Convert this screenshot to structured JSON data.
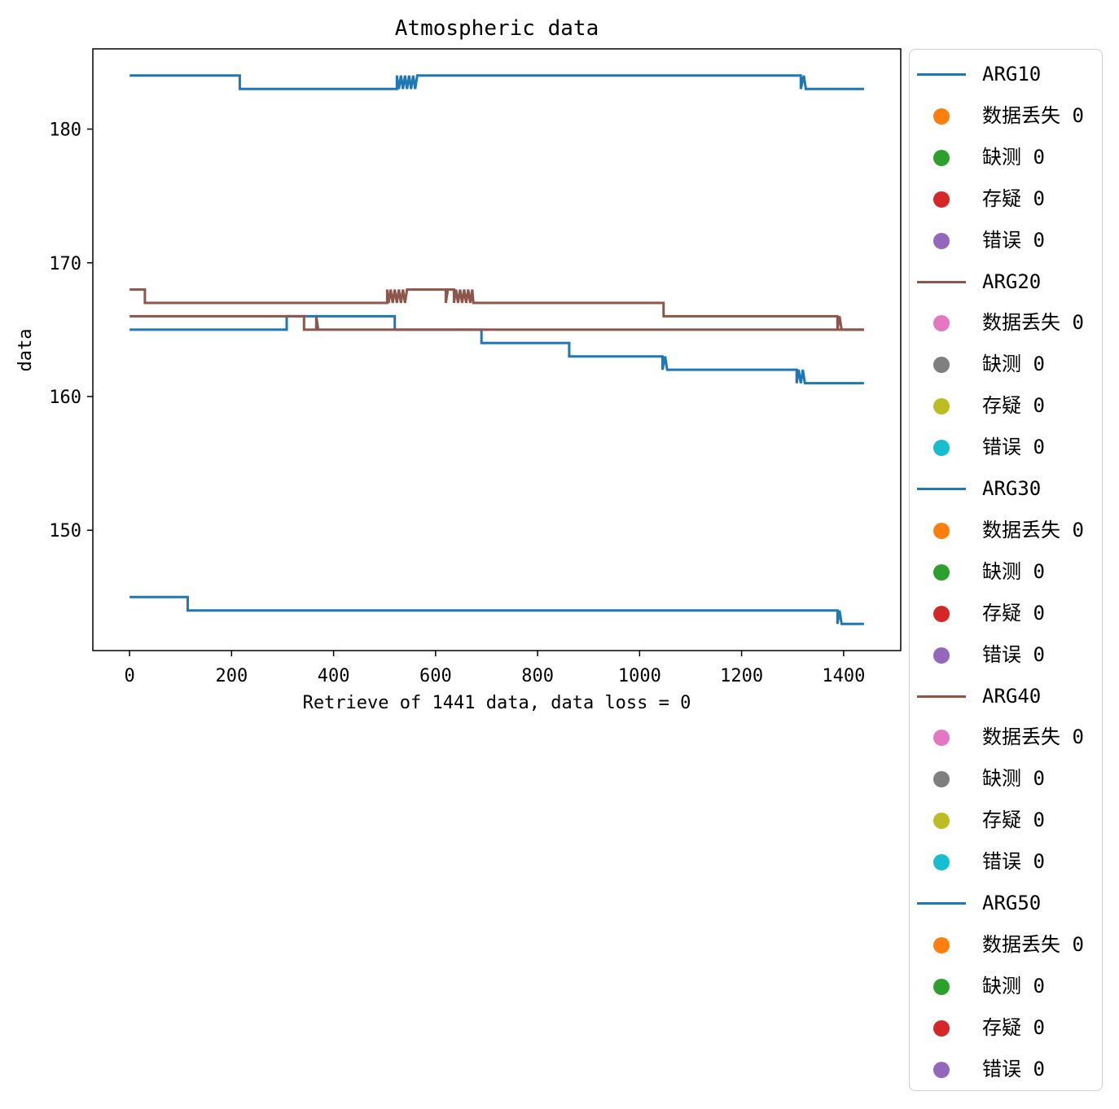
{
  "chart_data": {
    "type": "line",
    "title": "Atmospheric data",
    "xlabel": "Retrieve of 1441 data, data loss = 0",
    "ylabel": "data",
    "xlim": [
      -72,
      1512
    ],
    "ylim": [
      141,
      186
    ],
    "xticks": [
      0,
      200,
      400,
      600,
      800,
      1000,
      1200,
      1400
    ],
    "yticks": [
      150,
      160,
      170,
      180
    ],
    "grid": false,
    "legend_position": "outside-right",
    "series": [
      {
        "name": "ARG10",
        "color": "#1f77b4",
        "points": [
          [
            0,
            184
          ],
          [
            216,
            184
          ],
          [
            216,
            183
          ],
          [
            524,
            183
          ],
          [
            524,
            184
          ],
          [
            528,
            183
          ],
          [
            532,
            184
          ],
          [
            536,
            183
          ],
          [
            540,
            184
          ],
          [
            544,
            183
          ],
          [
            548,
            184
          ],
          [
            552,
            183
          ],
          [
            556,
            184
          ],
          [
            560,
            183
          ],
          [
            564,
            184
          ],
          [
            1316,
            184
          ],
          [
            1316,
            183
          ],
          [
            1322,
            184
          ],
          [
            1326,
            183
          ],
          [
            1440,
            183
          ]
        ]
      },
      {
        "name": "ARG20",
        "color": "#8c564b",
        "points": [
          [
            0,
            168
          ],
          [
            30,
            168
          ],
          [
            30,
            167
          ],
          [
            505,
            167
          ],
          [
            505,
            168
          ],
          [
            508,
            167
          ],
          [
            512,
            168
          ],
          [
            516,
            167
          ],
          [
            520,
            168
          ],
          [
            524,
            167
          ],
          [
            528,
            168
          ],
          [
            532,
            167
          ],
          [
            536,
            168
          ],
          [
            540,
            167
          ],
          [
            544,
            168
          ],
          [
            620,
            168
          ],
          [
            620,
            167
          ],
          [
            624,
            168
          ],
          [
            636,
            168
          ],
          [
            636,
            167
          ],
          [
            640,
            168
          ],
          [
            644,
            167
          ],
          [
            648,
            168
          ],
          [
            652,
            167
          ],
          [
            656,
            168
          ],
          [
            660,
            167
          ],
          [
            664,
            168
          ],
          [
            668,
            167
          ],
          [
            672,
            168
          ],
          [
            674,
            167
          ],
          [
            1047,
            167
          ],
          [
            1047,
            166
          ],
          [
            1388,
            166
          ],
          [
            1388,
            165
          ],
          [
            1392,
            166
          ],
          [
            1396,
            165
          ],
          [
            1440,
            165
          ]
        ]
      },
      {
        "name": "ARG30",
        "color": "#1f77b4",
        "points": [
          [
            0,
            165
          ],
          [
            308,
            165
          ],
          [
            308,
            166
          ],
          [
            520,
            166
          ],
          [
            520,
            165
          ],
          [
            690,
            165
          ],
          [
            690,
            164
          ],
          [
            862,
            164
          ],
          [
            862,
            163
          ],
          [
            1045,
            163
          ],
          [
            1045,
            162
          ],
          [
            1050,
            163
          ],
          [
            1054,
            162
          ],
          [
            1308,
            162
          ],
          [
            1308,
            161
          ],
          [
            1312,
            162
          ],
          [
            1316,
            161
          ],
          [
            1320,
            162
          ],
          [
            1324,
            161
          ],
          [
            1440,
            161
          ]
        ]
      },
      {
        "name": "ARG40",
        "color": "#8c564b",
        "points": [
          [
            0,
            166
          ],
          [
            342,
            166
          ],
          [
            342,
            165
          ],
          [
            366,
            165
          ],
          [
            366,
            166
          ],
          [
            370,
            165
          ],
          [
            1440,
            165
          ]
        ]
      },
      {
        "name": "ARG50",
        "color": "#1f77b4",
        "points": [
          [
            0,
            145
          ],
          [
            114,
            145
          ],
          [
            114,
            144
          ],
          [
            1388,
            144
          ],
          [
            1388,
            143
          ],
          [
            1392,
            144
          ],
          [
            1396,
            143
          ],
          [
            1440,
            143
          ]
        ]
      }
    ],
    "flag_markers": [
      {
        "label": "数据丢失 0",
        "color_cycle": [
          "#ff7f0e",
          "#e377c2"
        ]
      },
      {
        "label": "缺测 0",
        "color_cycle": [
          "#2ca02c",
          "#7f7f7f"
        ]
      },
      {
        "label": "存疑 0",
        "color_cycle": [
          "#d62728",
          "#bcbd22"
        ]
      },
      {
        "label": "错误 0",
        "color_cycle": [
          "#9467bd",
          "#17becf"
        ]
      }
    ]
  },
  "legend": {
    "items": [
      {
        "kind": "line",
        "label": "ARG10",
        "color": "#1f77b4"
      },
      {
        "kind": "dot",
        "label": "数据丢失 0",
        "color": "#ff7f0e"
      },
      {
        "kind": "dot",
        "label": "缺测 0",
        "color": "#2ca02c"
      },
      {
        "kind": "dot",
        "label": "存疑 0",
        "color": "#d62728"
      },
      {
        "kind": "dot",
        "label": "错误 0",
        "color": "#9467bd"
      },
      {
        "kind": "line",
        "label": "ARG20",
        "color": "#8c564b"
      },
      {
        "kind": "dot",
        "label": "数据丢失 0",
        "color": "#e377c2"
      },
      {
        "kind": "dot",
        "label": "缺测 0",
        "color": "#7f7f7f"
      },
      {
        "kind": "dot",
        "label": "存疑 0",
        "color": "#bcbd22"
      },
      {
        "kind": "dot",
        "label": "错误 0",
        "color": "#17becf"
      },
      {
        "kind": "line",
        "label": "ARG30",
        "color": "#1f77b4"
      },
      {
        "kind": "dot",
        "label": "数据丢失 0",
        "color": "#ff7f0e"
      },
      {
        "kind": "dot",
        "label": "缺测 0",
        "color": "#2ca02c"
      },
      {
        "kind": "dot",
        "label": "存疑 0",
        "color": "#d62728"
      },
      {
        "kind": "dot",
        "label": "错误 0",
        "color": "#9467bd"
      },
      {
        "kind": "line",
        "label": "ARG40",
        "color": "#8c564b"
      },
      {
        "kind": "dot",
        "label": "数据丢失 0",
        "color": "#e377c2"
      },
      {
        "kind": "dot",
        "label": "缺测 0",
        "color": "#7f7f7f"
      },
      {
        "kind": "dot",
        "label": "存疑 0",
        "color": "#bcbd22"
      },
      {
        "kind": "dot",
        "label": "错误 0",
        "color": "#17becf"
      },
      {
        "kind": "line",
        "label": "ARG50",
        "color": "#1f77b4"
      },
      {
        "kind": "dot",
        "label": "数据丢失 0",
        "color": "#ff7f0e"
      },
      {
        "kind": "dot",
        "label": "缺测 0",
        "color": "#2ca02c"
      },
      {
        "kind": "dot",
        "label": "存疑 0",
        "color": "#d62728"
      },
      {
        "kind": "dot",
        "label": "错误 0",
        "color": "#9467bd"
      }
    ]
  }
}
